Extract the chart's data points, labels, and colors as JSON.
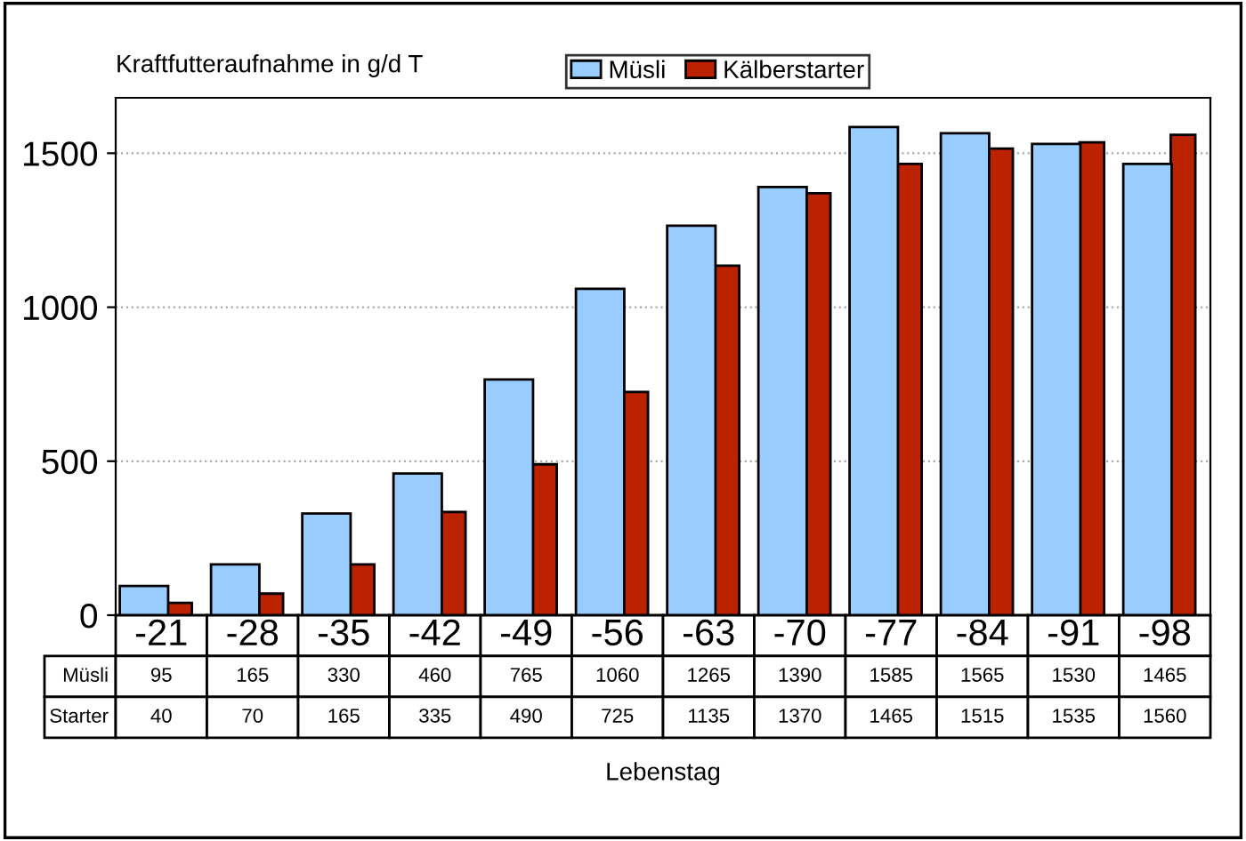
{
  "chart_data": {
    "type": "bar",
    "ylabel": "Kraftfutteraufnahme in g/d T",
    "xlabel": "Lebenstag",
    "categories": [
      "-21",
      "-28",
      "-35",
      "-42",
      "-49",
      "-56",
      "-63",
      "-70",
      "-77",
      "-84",
      "-91",
      "-98"
    ],
    "series": [
      {
        "name": "Müsli",
        "color": "#99ccff",
        "values": [
          95,
          165,
          330,
          460,
          765,
          1060,
          1265,
          1390,
          1585,
          1565,
          1530,
          1465
        ]
      },
      {
        "name": "Kälberstarter",
        "color": "#bb2200",
        "values": [
          40,
          70,
          165,
          335,
          490,
          725,
          1135,
          1370,
          1465,
          1515,
          1535,
          1560
        ]
      }
    ],
    "annotations": [
      "Müsli",
      "Starter"
    ],
    "ylim": [
      0,
      1680
    ],
    "yticks": [
      0,
      500,
      1000,
      1500
    ],
    "grid": "y",
    "legend": "top",
    "data_labels": true
  }
}
